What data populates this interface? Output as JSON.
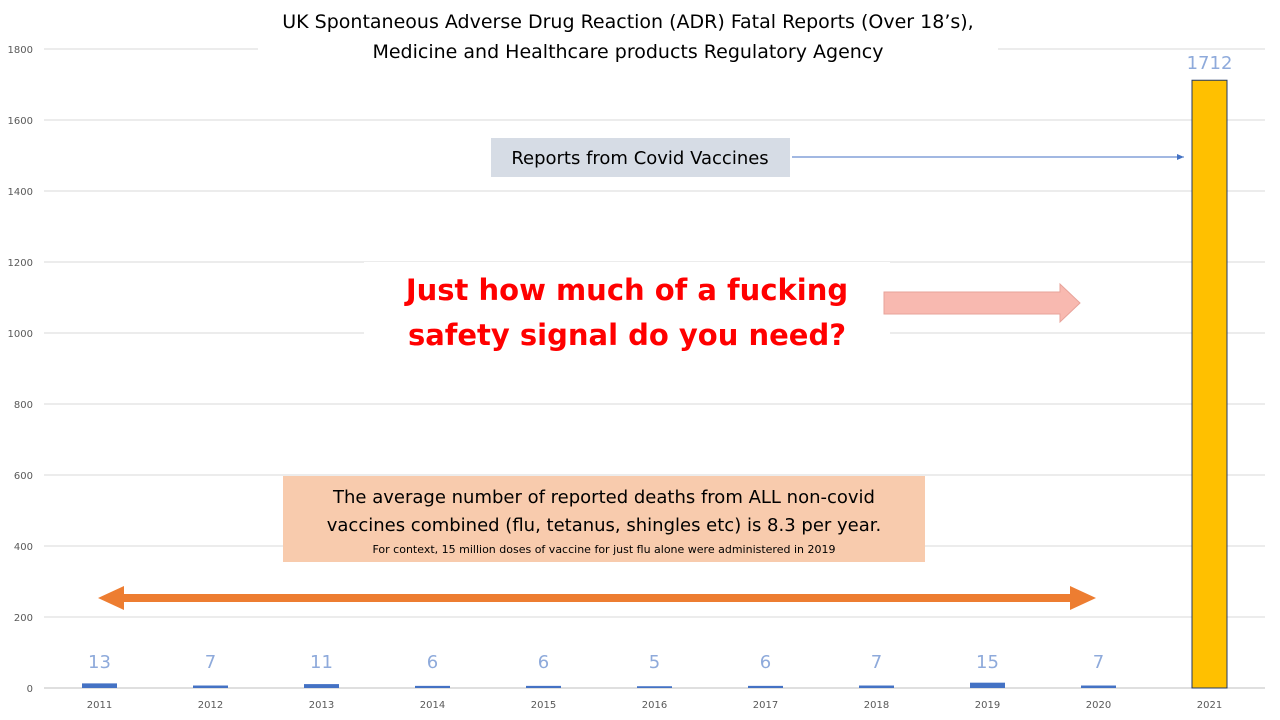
{
  "chart_data": {
    "type": "bar",
    "title_lines": [
      "UK Spontaneous Adverse Drug Reaction (ADR) Fatal Reports (Over 18’s),",
      "Medicine and Healthcare products Regulatory Agency"
    ],
    "categories": [
      "2011",
      "2012",
      "2013",
      "2014",
      "2015",
      "2016",
      "2017",
      "2018",
      "2019",
      "2020",
      "2021"
    ],
    "values": [
      13,
      7,
      11,
      6,
      6,
      5,
      6,
      7,
      15,
      7,
      1712
    ],
    "data_labels": [
      "13",
      "7",
      "11",
      "6",
      "6",
      "5",
      "6",
      "7",
      "15",
      "7",
      "1712"
    ],
    "y_ticks": [
      "0",
      "200",
      "400",
      "600",
      "800",
      "1000",
      "1200",
      "1400",
      "1600",
      "1800"
    ],
    "ylim": [
      0,
      1800
    ],
    "grid": true,
    "legend": false,
    "colors": {
      "bar": "#4472c4",
      "highlight_bar": "#ffc000",
      "highlight_bar_border": "#203864",
      "data_label": "#8eaadb",
      "gridline": "#d9d9d9",
      "headline": "#ff0000",
      "double_arrow": "#ed7d31",
      "pink_arrow": "#f8b9b0",
      "covid_box": "#d6dce5",
      "average_box": "#f8cbad"
    },
    "annotations": {
      "covid_label": "Reports from Covid Vaccines",
      "headline_lines": [
        "Just how much of a fucking",
        "safety signal do you need?"
      ],
      "average_lines": [
        "The average number of reported deaths from ALL non-covid",
        "vaccines combined (flu, tetanus, shingles etc) is 8.3 per year."
      ],
      "context_note": "For context, 15 million doses of vaccine for just flu alone were administered in 2019"
    }
  }
}
